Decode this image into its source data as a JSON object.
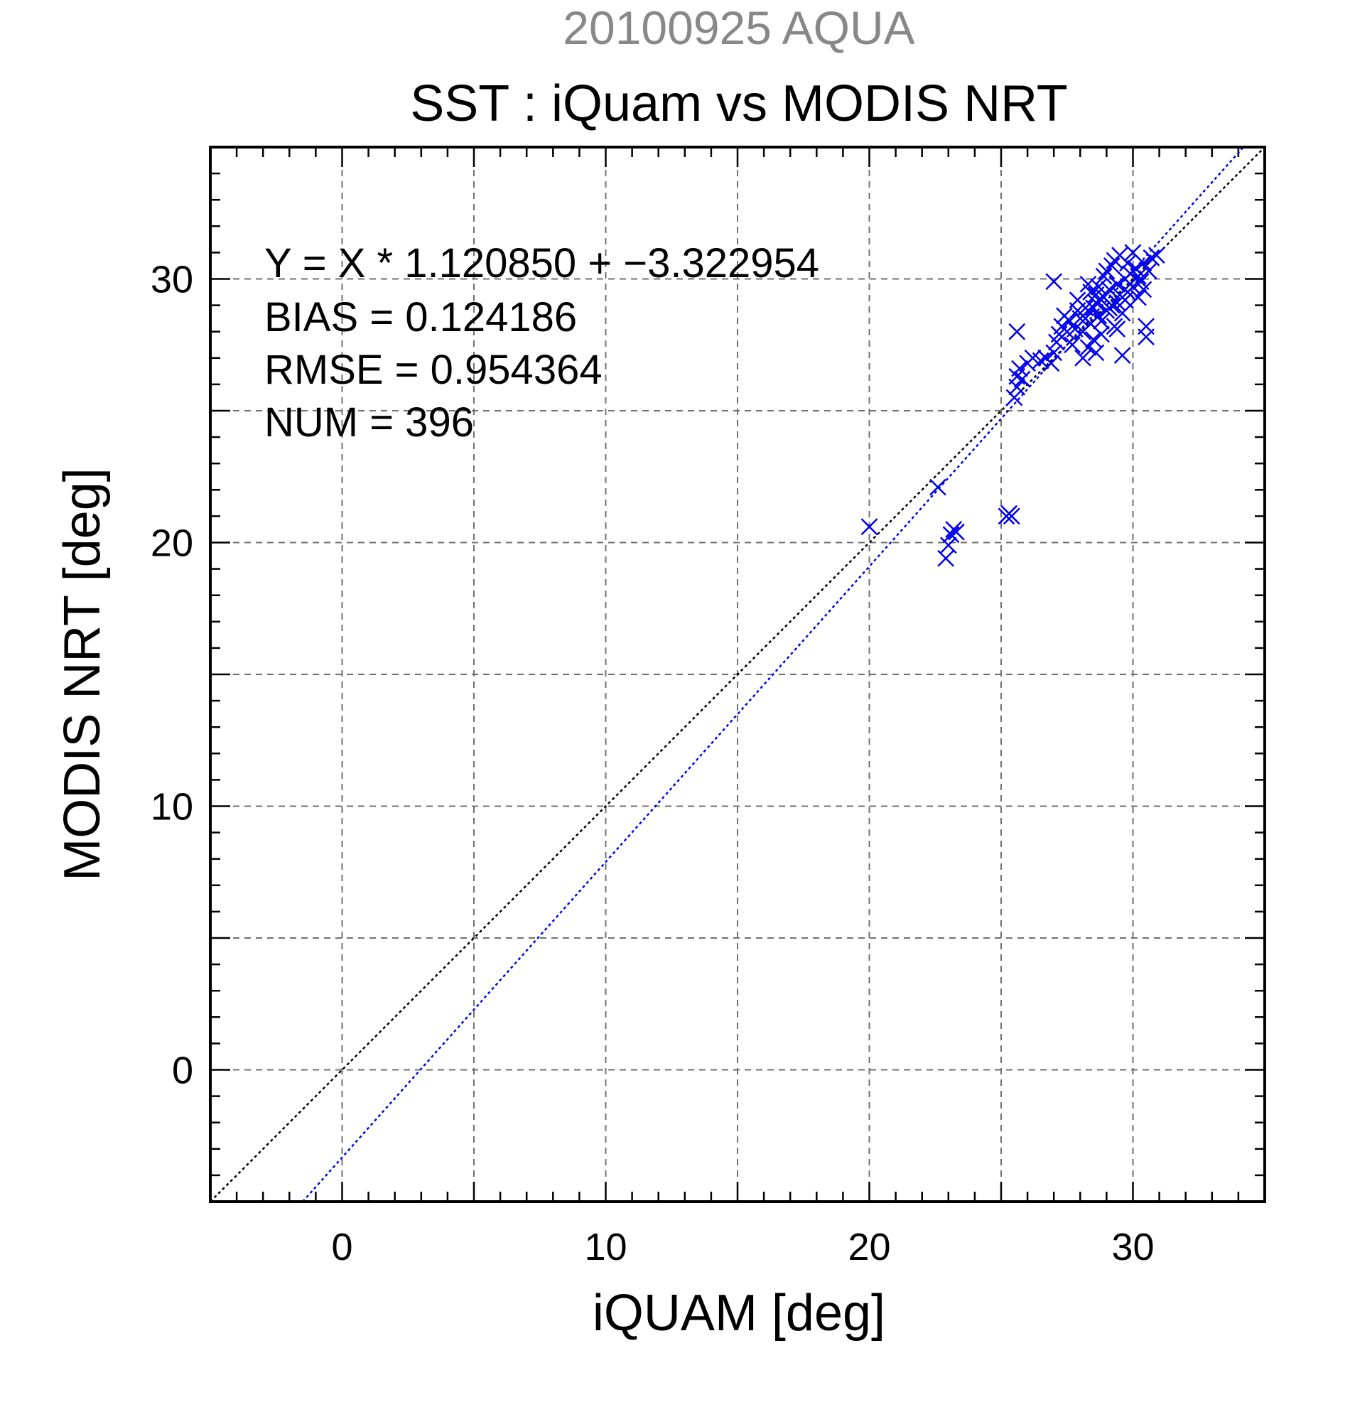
{
  "chart_data": {
    "type": "scatter",
    "subtitle": "20100925 AQUA",
    "title": "SST : iQuam vs MODIS NRT",
    "xlabel": "iQUAM [deg]",
    "ylabel": "MODIS NRT [deg]",
    "xlim": [
      -5,
      35
    ],
    "ylim": [
      -5,
      35
    ],
    "xticks": [
      0,
      10,
      20,
      30
    ],
    "yticks": [
      0,
      10,
      20,
      30
    ],
    "grid_step": 5,
    "minor_step": 1,
    "grid": true,
    "stats": {
      "equation": "Y = X * 1.120850 + −3.322954",
      "bias": "BIAS = 0.124186",
      "rmse": "RMSE = 0.954364",
      "num": "NUM = 396"
    },
    "lines": [
      {
        "role": "one-to-one reference",
        "color": "#000000",
        "slope": 1.0,
        "intercept": 0.0,
        "style": "dotted"
      },
      {
        "role": "regression fit",
        "color": "#0000ee",
        "slope": 1.12085,
        "intercept": -3.322954,
        "style": "dotted"
      }
    ],
    "series": [
      {
        "marker": "x",
        "color": "#0000ee",
        "points": [
          [
            20.0,
            20.6
          ],
          [
            22.6,
            22.1
          ],
          [
            22.9,
            19.4
          ],
          [
            23.0,
            19.9
          ],
          [
            23.1,
            20.3
          ],
          [
            23.2,
            20.5
          ],
          [
            23.3,
            20.4
          ],
          [
            25.2,
            21.0
          ],
          [
            25.3,
            21.1
          ],
          [
            25.4,
            21.0
          ],
          [
            25.5,
            25.5
          ],
          [
            25.6,
            25.9
          ],
          [
            25.6,
            26.3
          ],
          [
            25.7,
            26.6
          ],
          [
            25.6,
            28.0
          ],
          [
            25.8,
            26.2
          ],
          [
            26.0,
            26.8
          ],
          [
            26.2,
            27.0
          ],
          [
            26.5,
            26.9
          ],
          [
            26.7,
            27.0
          ],
          [
            26.9,
            26.8
          ],
          [
            27.0,
            27.2
          ],
          [
            27.1,
            27.6
          ],
          [
            27.2,
            27.9
          ],
          [
            27.3,
            28.2
          ],
          [
            27.0,
            29.9
          ],
          [
            27.4,
            28.6
          ],
          [
            27.5,
            28.0
          ],
          [
            27.6,
            28.4
          ],
          [
            27.8,
            28.1
          ],
          [
            27.9,
            28.8
          ],
          [
            28.0,
            28.5
          ],
          [
            28.1,
            27.0
          ],
          [
            28.2,
            28.9
          ],
          [
            28.3,
            27.4
          ],
          [
            28.4,
            28.3
          ],
          [
            28.5,
            27.7
          ],
          [
            28.6,
            29.1
          ],
          [
            28.7,
            28.6
          ],
          [
            28.8,
            27.9
          ],
          [
            28.9,
            29.3
          ],
          [
            29.0,
            28.8
          ],
          [
            29.1,
            29.6
          ],
          [
            29.2,
            29.0
          ],
          [
            29.3,
            28.2
          ],
          [
            29.4,
            29.8
          ],
          [
            29.5,
            29.4
          ],
          [
            29.6,
            28.7
          ],
          [
            29.7,
            30.0
          ],
          [
            29.8,
            29.5
          ],
          [
            29.9,
            30.2
          ],
          [
            30.0,
            29.7
          ],
          [
            30.1,
            30.4
          ],
          [
            30.2,
            30.1
          ],
          [
            30.3,
            29.9
          ],
          [
            30.4,
            30.6
          ],
          [
            30.5,
            27.8
          ],
          [
            30.5,
            28.2
          ],
          [
            30.6,
            30.3
          ],
          [
            30.7,
            30.8
          ],
          [
            30.9,
            30.9
          ],
          [
            29.6,
            27.1
          ],
          [
            29.4,
            28.1
          ],
          [
            28.6,
            27.2
          ],
          [
            28.3,
            29.8
          ],
          [
            28.9,
            30.1
          ],
          [
            29.2,
            30.5
          ],
          [
            27.7,
            27.5
          ],
          [
            28.1,
            28.0
          ],
          [
            28.4,
            29.5
          ],
          [
            28.7,
            29.7
          ],
          [
            29.0,
            30.3
          ],
          [
            29.3,
            30.7
          ],
          [
            29.5,
            30.9
          ],
          [
            29.8,
            30.6
          ],
          [
            30.0,
            31.0
          ],
          [
            27.9,
            29.2
          ],
          [
            28.2,
            28.5
          ],
          [
            28.8,
            28.4
          ],
          [
            29.1,
            28.9
          ],
          [
            29.7,
            29.2
          ],
          [
            30.2,
            29.3
          ],
          [
            30.4,
            29.6
          ],
          [
            28.5,
            28.9
          ],
          [
            28.6,
            29.4
          ],
          [
            29.4,
            29.1
          ],
          [
            29.9,
            29.8
          ]
        ]
      }
    ]
  }
}
